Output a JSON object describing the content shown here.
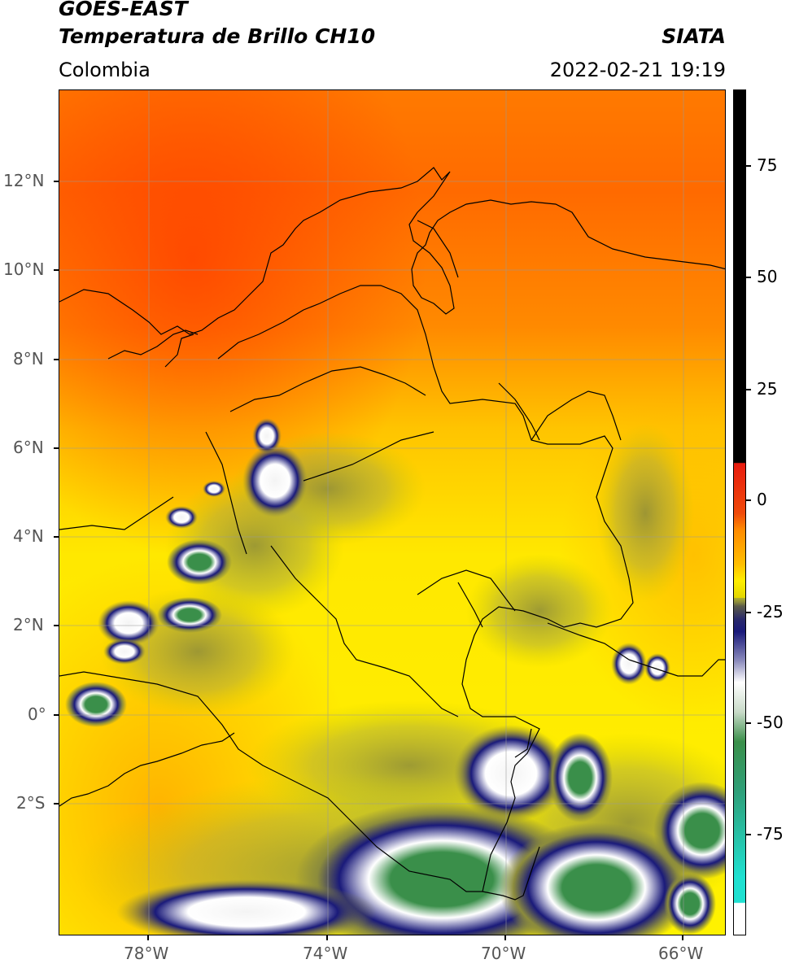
{
  "header": {
    "satellite": "GOES-EAST",
    "product": "Temperatura de Brillo CH10",
    "region": "Colombia",
    "agency": "SIATA",
    "datetime": "2022-02-21 19:19"
  },
  "axes": {
    "lon_ticks": [
      "78°W",
      "74°W",
      "70°W",
      "66°W"
    ],
    "lat_ticks": [
      "12°N",
      "10°N",
      "8°N",
      "6°N",
      "4°N",
      "2°N",
      "0°",
      "2°S"
    ]
  },
  "colorbar": {
    "ticks": [
      "75",
      "50",
      "25",
      "0",
      "-25",
      "-50",
      "-75"
    ],
    "range": [
      -100,
      90
    ],
    "colors": {
      "warm_max": "#000000",
      "red": "#e81b0e",
      "orange": "#ff8c00",
      "yellow": "#ffee00",
      "olive": "#8c8c3c",
      "navy": "#1a1a7a",
      "white": "#ffffff",
      "green": "#3a8f4a",
      "cyan": "#1fe0d0"
    }
  }
}
